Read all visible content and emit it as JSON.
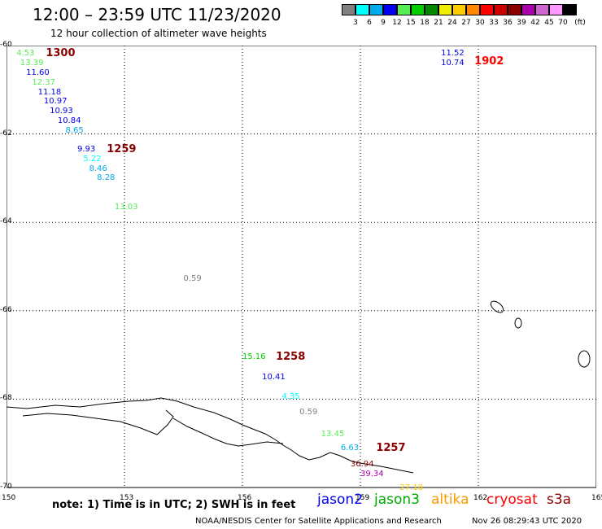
{
  "header": {
    "title": "12:00 – 23:59 UTC 11/23/2020",
    "subtitle": "12 hour collection of altimeter wave heights"
  },
  "colorbar": {
    "swatches": [
      {
        "color": "#808080",
        "label": "3"
      },
      {
        "color": "#00ffff",
        "label": "6"
      },
      {
        "color": "#00aaee",
        "label": "9"
      },
      {
        "color": "#0000ee",
        "label": "12"
      },
      {
        "color": "#55ee55",
        "label": "15"
      },
      {
        "color": "#00cc00",
        "label": "18"
      },
      {
        "color": "#008800",
        "label": "21"
      },
      {
        "color": "#eeee00",
        "label": "24"
      },
      {
        "color": "#ffcc00",
        "label": "27"
      },
      {
        "color": "#ff8800",
        "label": "30"
      },
      {
        "color": "#ff0000",
        "label": "33"
      },
      {
        "color": "#cc0000",
        "label": "36"
      },
      {
        "color": "#880000",
        "label": "39"
      },
      {
        "color": "#aa00aa",
        "label": "42"
      },
      {
        "color": "#cc66cc",
        "label": "45"
      },
      {
        "color": "#ff99ff",
        "label": "70"
      },
      {
        "color": "#000000",
        "label": ""
      }
    ],
    "unit": "(ft)"
  },
  "axes": {
    "lon_ticks": [
      "150",
      "153",
      "156",
      "159",
      "162",
      "165"
    ],
    "lat_ticks": [
      "-60",
      "-62",
      "-64",
      "-66",
      "-68",
      "-70"
    ]
  },
  "map_data": {
    "lon_range": [
      150,
      165
    ],
    "lat_range": [
      -60,
      -70
    ],
    "passes": [
      {
        "text": "1300",
        "lon": 151.0,
        "lat": -60.08,
        "color": "#880000"
      },
      {
        "text": "1259",
        "lon": 152.55,
        "lat": -62.25,
        "color": "#880000"
      },
      {
        "text": "1258",
        "lon": 156.85,
        "lat": -66.95,
        "color": "#880000"
      },
      {
        "text": "1257",
        "lon": 159.4,
        "lat": -69.0,
        "color": "#880000"
      },
      {
        "text": "1902",
        "lon": 161.9,
        "lat": -60.25,
        "color": "#ff0000"
      }
    ],
    "labels": [
      {
        "text": "4.53",
        "lon": 150.25,
        "lat": -60.08,
        "color": "#55ee55"
      },
      {
        "text": "13.39",
        "lon": 150.35,
        "lat": -60.3,
        "color": "#55ee55"
      },
      {
        "text": "11.60",
        "lon": 150.5,
        "lat": -60.52,
        "color": "#0000ee"
      },
      {
        "text": "12.37",
        "lon": 150.65,
        "lat": -60.74,
        "color": "#55ee55"
      },
      {
        "text": "11.18",
        "lon": 150.8,
        "lat": -60.96,
        "color": "#0000ee"
      },
      {
        "text": "10.97",
        "lon": 150.95,
        "lat": -61.16,
        "color": "#0000ee"
      },
      {
        "text": "10.93",
        "lon": 151.1,
        "lat": -61.38,
        "color": "#0000ee"
      },
      {
        "text": "10.84",
        "lon": 151.3,
        "lat": -61.6,
        "color": "#0000ee"
      },
      {
        "text": "8.65",
        "lon": 151.5,
        "lat": -61.82,
        "color": "#00aaee"
      },
      {
        "text": "9.93",
        "lon": 151.8,
        "lat": -62.25,
        "color": "#0000ee"
      },
      {
        "text": "5.22",
        "lon": 151.95,
        "lat": -62.47,
        "color": "#00ffff"
      },
      {
        "text": "8.46",
        "lon": 152.1,
        "lat": -62.68,
        "color": "#00aaee"
      },
      {
        "text": "8.28",
        "lon": 152.3,
        "lat": -62.9,
        "color": "#00aaee"
      },
      {
        "text": "13.03",
        "lon": 152.75,
        "lat": -63.55,
        "color": "#55ee55"
      },
      {
        "text": "0.59",
        "lon": 154.5,
        "lat": -65.17,
        "color": "#808080"
      },
      {
        "text": "15.16",
        "lon": 156.0,
        "lat": -66.95,
        "color": "#00cc00"
      },
      {
        "text": "10.41",
        "lon": 156.5,
        "lat": -67.4,
        "color": "#0000ee"
      },
      {
        "text": "4.35",
        "lon": 157.0,
        "lat": -67.85,
        "color": "#00ffff"
      },
      {
        "text": "0.59",
        "lon": 157.45,
        "lat": -68.2,
        "color": "#808080"
      },
      {
        "text": "13.45",
        "lon": 158.0,
        "lat": -68.7,
        "color": "#55ee55"
      },
      {
        "text": "6.63",
        "lon": 158.5,
        "lat": -69.0,
        "color": "#00aaee"
      },
      {
        "text": "36.94",
        "lon": 158.75,
        "lat": -69.37,
        "color": "#880000"
      },
      {
        "text": "39.34",
        "lon": 159.0,
        "lat": -69.6,
        "color": "#aa00aa"
      },
      {
        "text": "27.18",
        "lon": 160.0,
        "lat": -69.9,
        "color": "#ffcc00"
      },
      {
        "text": "11.52",
        "lon": 161.05,
        "lat": -60.08,
        "color": "#0000ee"
      },
      {
        "text": "10.74",
        "lon": 161.05,
        "lat": -60.3,
        "color": "#0000ee"
      }
    ]
  },
  "footer": {
    "note": "note: 1) Time is in UTC; 2) SWH is in feet",
    "satellites": [
      {
        "name": "jason2",
        "color": "#0000ee"
      },
      {
        "name": "jason3",
        "color": "#00aa00"
      },
      {
        "name": "altika",
        "color": "#ff9900"
      },
      {
        "name": "cryosat",
        "color": "#ff0000"
      },
      {
        "name": "s3a",
        "color": "#880000"
      }
    ],
    "credit": "NOAA/NESDIS Center for Satellite Applications and Research",
    "timestamp": "Nov 26 08:29:43 UTC 2020"
  }
}
